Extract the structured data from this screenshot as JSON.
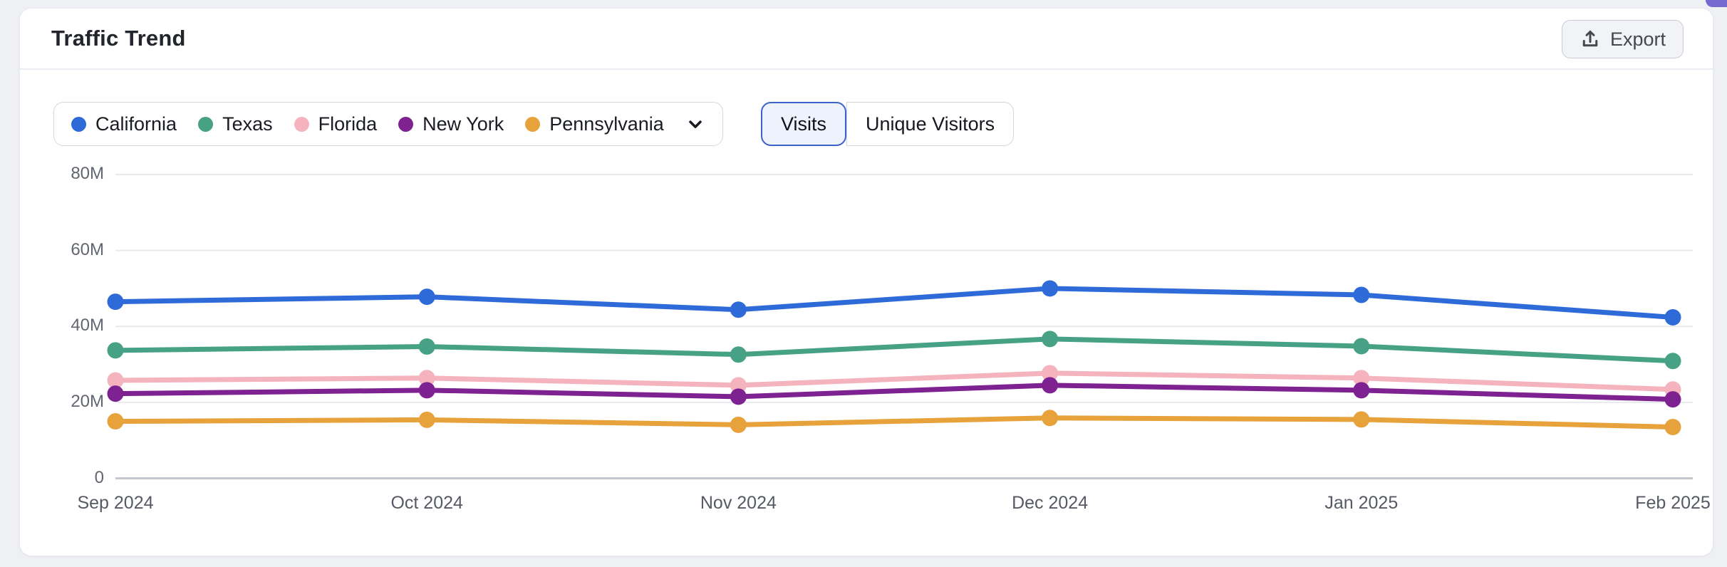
{
  "page": {
    "background_color": "#eef0f4",
    "card_background_color": "#ffffff"
  },
  "header": {
    "title": "Traffic Trend",
    "export_label": "Export"
  },
  "legend": {
    "items": [
      {
        "label": "California",
        "color": "#2e6bd9"
      },
      {
        "label": "Texas",
        "color": "#47a285"
      },
      {
        "label": "Florida",
        "color": "#f4b3bd"
      },
      {
        "label": "New York",
        "color": "#7e2191"
      },
      {
        "label": "Pennsylvania",
        "color": "#e7a23c"
      }
    ]
  },
  "metric_toggle": {
    "options": [
      {
        "label": "Visits",
        "selected": true
      },
      {
        "label": "Unique Visitors",
        "selected": false
      }
    ],
    "selected_border_color": "#3a62c8",
    "selected_background": "#eef2fc"
  },
  "chart_data": {
    "type": "line",
    "title": "Traffic Trend",
    "metric": "Visits",
    "unit": "millions",
    "categories": [
      "Sep 2024",
      "Oct 2024",
      "Nov 2024",
      "Dec 2024",
      "Jan 2025",
      "Feb 2025"
    ],
    "series": [
      {
        "name": "California",
        "color": "#2e6bd9",
        "values": [
          46.5,
          47.8,
          44.4,
          50.0,
          48.3,
          42.4
        ]
      },
      {
        "name": "Texas",
        "color": "#47a285",
        "values": [
          33.7,
          34.7,
          32.6,
          36.7,
          34.8,
          30.9
        ]
      },
      {
        "name": "Florida",
        "color": "#f4b3bd",
        "values": [
          25.8,
          26.4,
          24.5,
          27.7,
          26.4,
          23.4
        ]
      },
      {
        "name": "New York",
        "color": "#7e2191",
        "values": [
          22.3,
          23.2,
          21.5,
          24.5,
          23.2,
          20.8
        ]
      },
      {
        "name": "Pennsylvania",
        "color": "#e7a23c",
        "values": [
          15.0,
          15.4,
          14.1,
          15.9,
          15.5,
          13.5
        ]
      }
    ],
    "y_ticks": [
      {
        "value": 80,
        "label": "80M"
      },
      {
        "value": 60,
        "label": "60M"
      },
      {
        "value": 40,
        "label": "40M"
      },
      {
        "value": 20,
        "label": "20M"
      },
      {
        "value": 0,
        "label": "0"
      }
    ],
    "ylim": [
      0,
      80
    ],
    "grid": "horizontal",
    "gridline_color": "#e8e9ee",
    "baseline_color": "#c3c7d0",
    "legend_position": "top-left"
  }
}
